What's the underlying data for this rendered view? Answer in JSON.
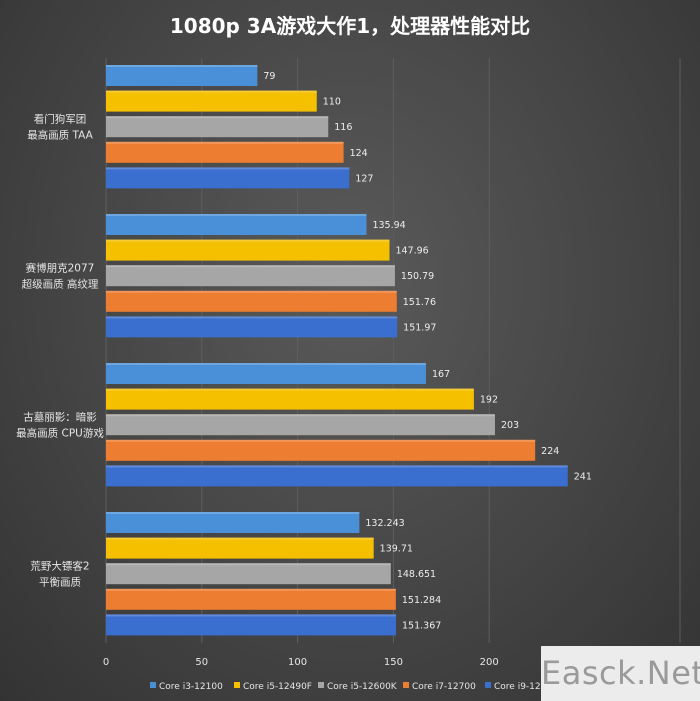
{
  "chart_data": {
    "type": "bar",
    "orientation": "horizontal",
    "title": "1080p 3A游戏大作1，处理器性能对比",
    "xlim": [
      0,
      250
    ],
    "xticks": [
      0,
      50,
      100,
      150,
      200
    ],
    "grid": true,
    "legend_position": "bottom",
    "categories": [
      [
        "看门狗军团",
        "最高画质 TAA"
      ],
      [
        "赛博朋克2077",
        "超级画质 高纹理"
      ],
      [
        "古墓丽影：暗影",
        "最高画质 CPU游戏"
      ],
      [
        "荒野大镖客2",
        "平衡画质"
      ]
    ],
    "series": [
      {
        "name": "Core i3-12100",
        "color": "#4a90d9",
        "values": [
          79,
          135.94,
          167,
          132.243
        ],
        "labels": [
          "79",
          "135.94",
          "167",
          "132.243"
        ]
      },
      {
        "name": "Core i5-12490F",
        "color": "#f5c000",
        "values": [
          110,
          147.96,
          192,
          139.71
        ],
        "labels": [
          "110",
          "147.96",
          "192",
          "139.71"
        ]
      },
      {
        "name": "Core i5-12600K",
        "color": "#a6a6a6",
        "values": [
          116,
          150.79,
          203,
          148.651
        ],
        "labels": [
          "116",
          "150.79",
          "203",
          "148.651"
        ]
      },
      {
        "name": "Core i7-12700",
        "color": "#ed7d31",
        "values": [
          124,
          151.76,
          224,
          151.284
        ],
        "labels": [
          "124",
          "151.76",
          "224",
          "151.284"
        ]
      },
      {
        "name": "Core i9-12900K",
        "color": "#3a6fd0",
        "values": [
          127,
          151.97,
          241,
          151.367
        ],
        "labels": [
          "127",
          "151.97",
          "241",
          "151.367"
        ]
      }
    ]
  },
  "watermark": "Easck.Net"
}
